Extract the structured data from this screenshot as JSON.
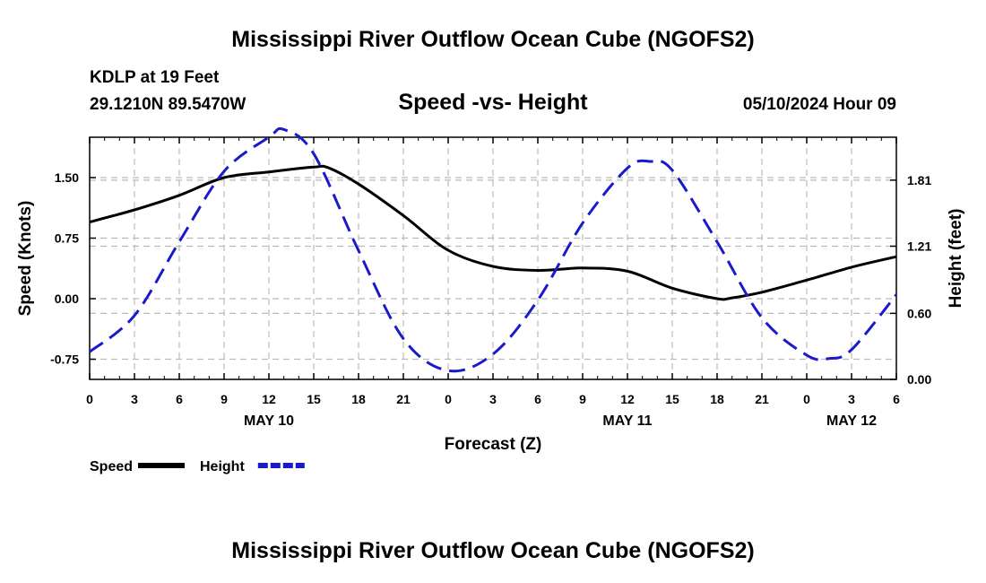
{
  "header": {
    "title": "Mississippi River Outflow Ocean Cube (NGOFS2)",
    "station": "KDLP at 19 Feet",
    "coordinates": "29.1210N  89.5470W",
    "subtitle": "Speed -vs- Height",
    "datetime": "05/10/2024 Hour 09"
  },
  "footer": {
    "title": "Mississippi River Outflow Ocean Cube (NGOFS2)"
  },
  "chart_data": {
    "type": "line",
    "xlabel": "Forecast (Z)",
    "ylabel_left": "Speed (Knots)",
    "ylabel_right": "Height (feet)",
    "x_range_hours": [
      0,
      54
    ],
    "ylim_left": [
      -1.0,
      2.0
    ],
    "ylim_right": [
      0.0,
      2.2
    ],
    "x_ticks": [
      {
        "hour": 0,
        "label": "0"
      },
      {
        "hour": 3,
        "label": "3"
      },
      {
        "hour": 6,
        "label": "6"
      },
      {
        "hour": 9,
        "label": "9"
      },
      {
        "hour": 12,
        "label": "12"
      },
      {
        "hour": 15,
        "label": "15"
      },
      {
        "hour": 18,
        "label": "18"
      },
      {
        "hour": 21,
        "label": "21"
      },
      {
        "hour": 24,
        "label": "0"
      },
      {
        "hour": 27,
        "label": "3"
      },
      {
        "hour": 30,
        "label": "6"
      },
      {
        "hour": 33,
        "label": "9"
      },
      {
        "hour": 36,
        "label": "12"
      },
      {
        "hour": 39,
        "label": "15"
      },
      {
        "hour": 42,
        "label": "18"
      },
      {
        "hour": 45,
        "label": "21"
      },
      {
        "hour": 48,
        "label": "0"
      },
      {
        "hour": 51,
        "label": "3"
      },
      {
        "hour": 54,
        "label": "6"
      }
    ],
    "date_labels": [
      {
        "hour": 12,
        "label": "MAY 10"
      },
      {
        "hour": 36,
        "label": "MAY 11"
      },
      {
        "hour": 51,
        "label": "MAY 12"
      }
    ],
    "left_ticks": [
      {
        "value": 1.5,
        "label": "1.50"
      },
      {
        "value": 0.75,
        "label": "0.75"
      },
      {
        "value": 0.0,
        "label": "0.00"
      },
      {
        "value": -0.75,
        "label": "-0.75"
      }
    ],
    "right_ticks": [
      {
        "value": 1.81,
        "label": "1.81"
      },
      {
        "value": 1.21,
        "label": "1.21"
      },
      {
        "value": 0.6,
        "label": "0.60"
      },
      {
        "value": 0.0,
        "label": "0.00"
      }
    ],
    "series": [
      {
        "name": "Speed",
        "axis": "left",
        "color": "#000000",
        "style": "solid",
        "x": [
          0,
          3,
          6,
          9,
          12,
          15,
          16,
          18,
          21,
          24,
          27,
          30,
          33,
          36,
          39,
          42,
          43,
          45,
          48,
          51,
          54
        ],
        "y": [
          0.95,
          1.1,
          1.28,
          1.5,
          1.57,
          1.63,
          1.62,
          1.42,
          1.03,
          0.6,
          0.4,
          0.35,
          0.38,
          0.34,
          0.13,
          0.0,
          0.01,
          0.08,
          0.23,
          0.39,
          0.52
        ]
      },
      {
        "name": "Height",
        "axis": "right",
        "color": "#1a1acc",
        "style": "dashed",
        "x": [
          0,
          3,
          6,
          9,
          12,
          13,
          15,
          18,
          21,
          24,
          27,
          30,
          33,
          36,
          37.5,
          39,
          42,
          45,
          48,
          49.5,
          51,
          54
        ],
        "y": [
          0.25,
          0.58,
          1.25,
          1.89,
          2.2,
          2.27,
          2.05,
          1.17,
          0.37,
          0.08,
          0.23,
          0.72,
          1.42,
          1.92,
          1.98,
          1.9,
          1.25,
          0.56,
          0.22,
          0.19,
          0.27,
          0.77
        ]
      }
    ],
    "legend": {
      "position": "bottom-left",
      "entries": [
        {
          "label": "Speed",
          "color": "#000000",
          "style": "solid"
        },
        {
          "label": "Height",
          "color": "#1a1acc",
          "style": "dashed"
        }
      ]
    }
  }
}
